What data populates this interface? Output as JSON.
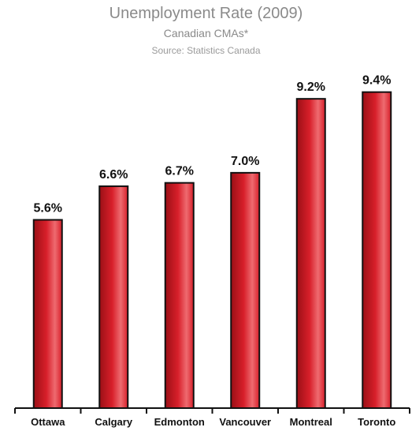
{
  "chart_data": {
    "type": "bar",
    "title": "Unemployment Rate (2009)",
    "subtitle": "Canadian CMAs*",
    "source": "Source: Statistics Canada",
    "categories": [
      "Ottawa",
      "Calgary",
      "Edmonton",
      "Vancouver",
      "Montreal",
      "Toronto"
    ],
    "values": [
      5.6,
      6.6,
      6.7,
      7.0,
      9.2,
      9.4
    ],
    "value_labels": [
      "5.6%",
      "6.6%",
      "6.7%",
      "7.0%",
      "9.2%",
      "9.4%"
    ],
    "xlabel": "",
    "ylabel": "",
    "ylim": [
      0,
      11.2
    ],
    "grid": false,
    "legend": "none",
    "colors": {
      "bar_dark": "#9b1016",
      "bar_mid": "#d81f2a",
      "bar_light": "#ee6b70",
      "bar_edge": "#111111",
      "axis": "#111111",
      "title": "#8a8a8a"
    }
  }
}
